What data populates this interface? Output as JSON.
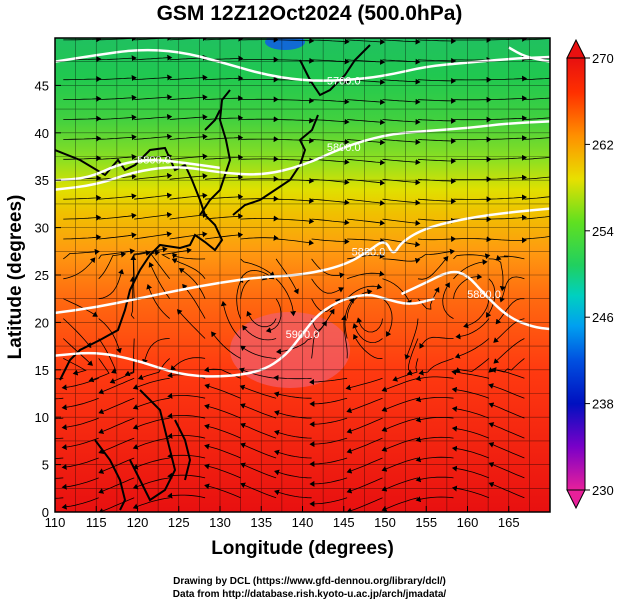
{
  "title": "GSM 12Z12Oct2024 (500.0hPa)",
  "xlabel": "Longitude (degrees)",
  "ylabel": "Latitude  (degrees)",
  "credits": {
    "line1": "Drawing by DCL (https://www.gfd-dennou.org/library/dcl/)",
    "line2": "Data from http://database.rish.kyoto-u.ac.jp/arch/jmadata/"
  },
  "chart_data": {
    "type": "heatmap",
    "variable": "temperature shading with geopotential height contours and wind streamlines",
    "xlim": [
      110,
      170
    ],
    "ylim": [
      0,
      50
    ],
    "xticks": [
      110,
      115,
      120,
      125,
      130,
      135,
      140,
      145,
      150,
      155,
      160,
      165
    ],
    "yticks": [
      0,
      5,
      10,
      15,
      20,
      25,
      30,
      35,
      40,
      45
    ],
    "colorbar": {
      "min": 230,
      "max": 270,
      "ticks": [
        230,
        238,
        246,
        254,
        262,
        270
      ],
      "colors": [
        "#e8209a",
        "#7a00c8",
        "#0010c0",
        "#0070f0",
        "#00c8e0",
        "#20d060",
        "#60e020",
        "#e8e000",
        "#ff9000",
        "#ff3000",
        "#e81010"
      ]
    },
    "contours": [
      {
        "label": "5700.0",
        "points": [
          [
            110,
            47.5
          ],
          [
            115,
            48.2
          ],
          [
            120,
            48.8
          ],
          [
            125,
            48.6
          ],
          [
            130,
            47.5
          ],
          [
            135,
            46.2
          ],
          [
            140,
            45.5
          ],
          [
            145,
            45.5
          ],
          [
            150,
            46.0
          ],
          [
            155,
            47.0
          ],
          [
            160,
            47.4
          ],
          [
            165,
            47.8
          ],
          [
            170,
            48.0
          ]
        ]
      },
      {
        "label": "5800.0",
        "points": [
          [
            110,
            34.0
          ],
          [
            115,
            34.5
          ],
          [
            120,
            36.0
          ],
          [
            125,
            36.5
          ],
          [
            130,
            35.8
          ],
          [
            135,
            35.5
          ],
          [
            140,
            36.5
          ],
          [
            145,
            38.5
          ],
          [
            150,
            39.8
          ],
          [
            155,
            40.2
          ],
          [
            160,
            40.5
          ],
          [
            165,
            41.0
          ],
          [
            170,
            41.2
          ]
        ]
      },
      {
        "label": "5800.0",
        "points": [
          [
            110,
            35.0
          ],
          [
            114,
            35.2
          ],
          [
            118,
            36.8
          ],
          [
            122,
            37.2
          ],
          [
            126,
            36.8
          ],
          [
            130,
            36.3
          ]
        ]
      },
      {
        "label": "5800.0",
        "points": [
          [
            165,
            49.0
          ],
          [
            167,
            48.0
          ],
          [
            170,
            47.5
          ]
        ]
      },
      {
        "label": "5880.0",
        "points": [
          [
            110,
            21.0
          ],
          [
            115,
            21.6
          ],
          [
            120,
            22.5
          ],
          [
            125,
            23.4
          ],
          [
            130,
            24.2
          ],
          [
            135,
            24.8
          ],
          [
            140,
            25.0
          ],
          [
            145,
            26.0
          ],
          [
            148,
            27.5
          ],
          [
            150,
            28.8
          ],
          [
            151,
            27.0
          ],
          [
            152,
            28.5
          ],
          [
            155,
            30.0
          ],
          [
            160,
            31.0
          ],
          [
            165,
            31.6
          ],
          [
            170,
            32.0
          ]
        ]
      },
      {
        "label": "5880.0",
        "points": [
          [
            152,
            23.0
          ],
          [
            155,
            24.2
          ],
          [
            158,
            25.5
          ],
          [
            160,
            25.0
          ],
          [
            162,
            23.0
          ],
          [
            165,
            20.5
          ],
          [
            168,
            19.5
          ],
          [
            170,
            19.3
          ]
        ]
      },
      {
        "label": "5900.0",
        "points": [
          [
            110,
            16.5
          ],
          [
            115,
            16.9
          ],
          [
            120,
            16.0
          ],
          [
            125,
            14.5
          ],
          [
            130,
            14.2
          ],
          [
            135,
            14.8
          ],
          [
            138,
            16.5
          ],
          [
            140,
            18.8
          ],
          [
            142,
            21.0
          ],
          [
            145,
            22.5
          ],
          [
            148,
            23.0
          ],
          [
            150,
            22.5
          ],
          [
            153,
            21.8
          ],
          [
            156,
            22.5
          ]
        ]
      }
    ],
    "highs": [
      {
        "lon": 135,
        "lat": 21
      },
      {
        "lon": 149,
        "lat": 21.5
      },
      {
        "lon": 160,
        "lat": 22
      }
    ]
  }
}
